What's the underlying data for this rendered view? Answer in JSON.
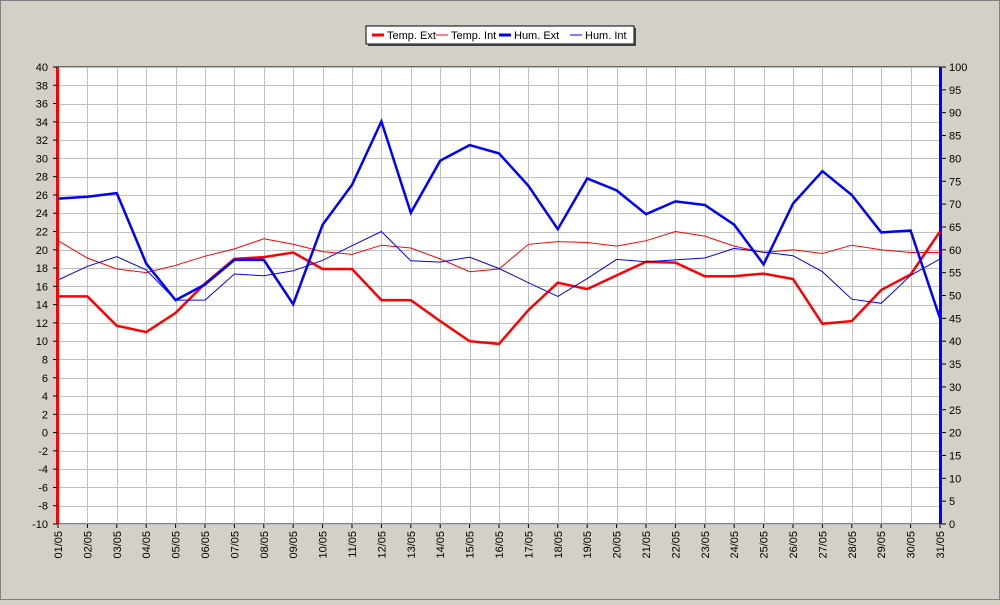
{
  "chart_data": {
    "type": "line",
    "title": "",
    "xlabel": "",
    "ylabel": "",
    "y2label": "",
    "legend_position": "top-center",
    "grid": true,
    "categories": [
      "01/05",
      "02/05",
      "03/05",
      "04/05",
      "05/05",
      "06/05",
      "07/05",
      "08/05",
      "09/05",
      "10/05",
      "11/05",
      "12/05",
      "13/05",
      "14/05",
      "15/05",
      "16/05",
      "17/05",
      "18/05",
      "19/05",
      "20/05",
      "21/05",
      "22/05",
      "23/05",
      "24/05",
      "25/05",
      "26/05",
      "27/05",
      "28/05",
      "29/05",
      "30/05",
      "31/05"
    ],
    "ylim_left": [
      -10,
      40
    ],
    "yticks_left": [
      "40",
      "38",
      "36",
      "34",
      "32",
      "30",
      "28",
      "26",
      "24",
      "22",
      "20",
      "18",
      "16",
      "14",
      "12",
      "10",
      "8",
      "6",
      "4",
      "2",
      "0",
      "-2",
      "-4",
      "-6",
      "-8",
      "-10"
    ],
    "ylim_right": [
      0,
      100
    ],
    "yticks_right": [
      "100",
      "95",
      "90",
      "85",
      "80",
      "75",
      "70",
      "65",
      "60",
      "55",
      "50",
      "45",
      "40",
      "35",
      "30",
      "25",
      "20",
      "15",
      "10",
      "5",
      "0"
    ],
    "colors": {
      "temp": "#ff0000",
      "hum": "#0000ff",
      "plot_bg": "#ffffff",
      "grid": "#c0c0c0"
    },
    "series": [
      {
        "name": "Temp. Ext",
        "axis": "left",
        "color": "#ff0000",
        "bold": true,
        "values": [
          14.9,
          14.9,
          11.7,
          11.0,
          13.1,
          16.3,
          19.0,
          19.2,
          19.7,
          17.9,
          17.9,
          14.5,
          14.5,
          12.2,
          10.0,
          9.7,
          13.4,
          16.4,
          15.7,
          17.2,
          18.7,
          18.6,
          17.1,
          17.1,
          17.4,
          16.8,
          11.9,
          12.2,
          15.6,
          17.3,
          22.0
        ]
      },
      {
        "name": "Temp. Int",
        "axis": "left",
        "color": "#ff0000",
        "bold": false,
        "values": [
          21.0,
          19.1,
          17.9,
          17.5,
          18.3,
          19.3,
          20.1,
          21.2,
          20.6,
          19.8,
          19.5,
          20.5,
          20.2,
          19.0,
          17.6,
          17.9,
          20.6,
          20.9,
          20.8,
          20.4,
          21.0,
          22.0,
          21.5,
          20.4,
          19.7,
          20.0,
          19.6,
          20.5,
          20.0,
          19.7,
          19.7
        ]
      },
      {
        "name": "Hum. Ext",
        "axis": "right",
        "color": "#0000ff",
        "bold": true,
        "values": [
          71.2,
          71.6,
          72.4,
          57.0,
          49.0,
          52.4,
          57.8,
          57.8,
          48.1,
          65.5,
          74.2,
          88.1,
          68.1,
          79.5,
          82.9,
          81.1,
          74.0,
          64.5,
          75.6,
          73.0,
          67.8,
          70.6,
          69.8,
          65.5,
          56.8,
          70.1,
          77.2,
          72.0,
          63.8,
          64.2,
          45.0
        ]
      },
      {
        "name": "Hum. Int",
        "axis": "right",
        "color": "#0000ff",
        "bold": false,
        "values": [
          53.4,
          56.4,
          58.5,
          55.6,
          49.0,
          49.0,
          54.7,
          54.3,
          55.4,
          57.7,
          60.9,
          64.0,
          57.6,
          57.3,
          58.4,
          55.9,
          52.8,
          49.8,
          53.7,
          57.9,
          57.4,
          57.8,
          58.2,
          60.3,
          59.5,
          58.7,
          55.2,
          49.2,
          48.3,
          54.4,
          58.0
        ]
      }
    ]
  }
}
